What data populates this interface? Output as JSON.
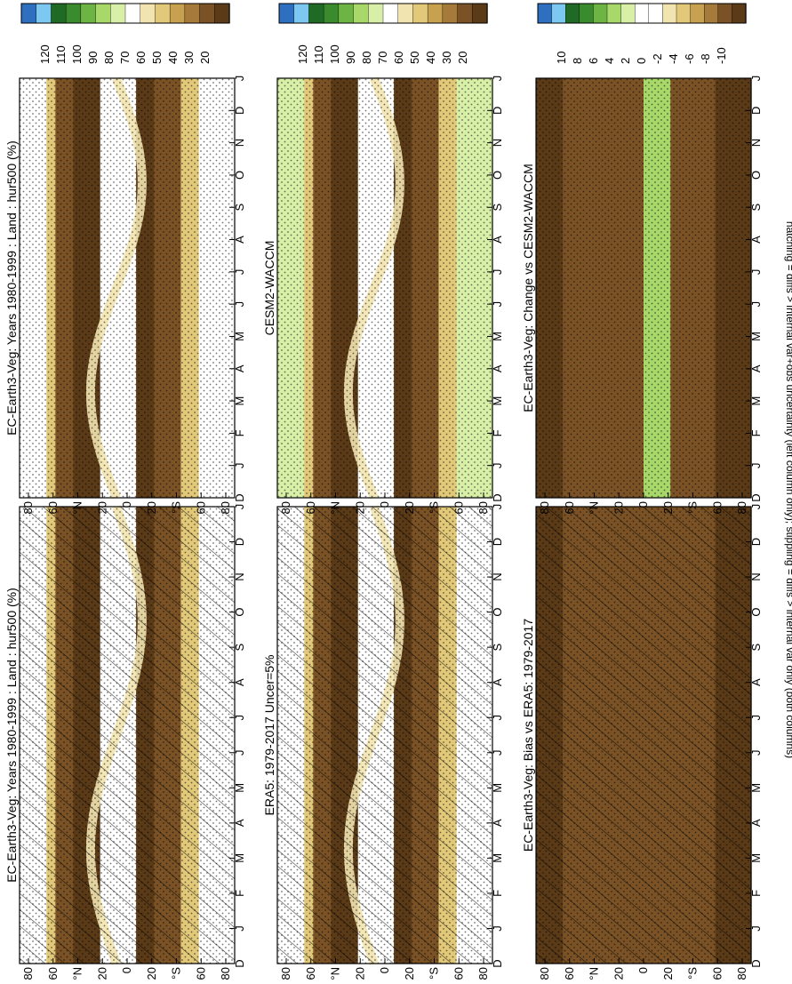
{
  "colors": {
    "brown_dark": "#5a3a17",
    "brown": "#7a5226",
    "tan": "#a57a3a",
    "gold": "#c7a050",
    "khaki": "#e2c97a",
    "pale": "#f2e4b0",
    "white": "#ffffff",
    "light_green": "#d8efa8",
    "green": "#a8d86a",
    "mid_green": "#6cb443",
    "dark_green": "#3a8a2e",
    "deep_green": "#1f6a24",
    "sky": "#7cc8f0",
    "blue": "#2f6fc0"
  },
  "footnote": "hatching = diffs > internal var+obs uncertainty (left column only); stippling = diffs > internal var only (both columns)",
  "months": [
    "D",
    "J",
    "F",
    "M",
    "A",
    "M",
    "J",
    "J",
    "A",
    "S",
    "O",
    "N",
    "D",
    "J"
  ],
  "lat_ticks": [
    "80",
    "60",
    "°N",
    "20",
    "0",
    "20",
    "°S",
    "60",
    "80"
  ],
  "chart_data": [
    {
      "type": "heatmap",
      "title": "EC-Earth3-Veg: Years 1980-1999 : Land : hur500 (%)",
      "xlabel": "",
      "ylabel": "",
      "x_ticks": [
        "D",
        "J",
        "F",
        "M",
        "A",
        "M",
        "J",
        "J",
        "A",
        "S",
        "O",
        "N",
        "D",
        "J"
      ],
      "y_ticks": [
        "80",
        "60",
        "°N",
        "20",
        "0",
        "20",
        "°S",
        "60",
        "80"
      ],
      "colorbar": [
        "120",
        "110",
        "100",
        "90",
        "80",
        "70",
        "60",
        "50",
        "40",
        "30",
        "20"
      ],
      "hatching": true,
      "stippling": true
    },
    {
      "type": "heatmap",
      "title": "EC-Earth3-Veg: Years 1980-1999 : Land : hur500 (%)",
      "xlabel": "",
      "ylabel": "",
      "x_ticks": [
        "D",
        "J",
        "F",
        "M",
        "A",
        "M",
        "J",
        "J",
        "A",
        "S",
        "O",
        "N",
        "D",
        "J"
      ],
      "y_ticks": [
        "80",
        "60",
        "°N",
        "20",
        "0",
        "20",
        "°S",
        "60",
        "80"
      ],
      "colorbar": [
        "120",
        "110",
        "100",
        "90",
        "80",
        "70",
        "60",
        "50",
        "40",
        "30",
        "20"
      ],
      "hatching": false,
      "stippling": true
    },
    {
      "type": "heatmap",
      "title": "ERA5: 1979-2017 Uncer=5%",
      "xlabel": "",
      "ylabel": "",
      "x_ticks": [
        "D",
        "J",
        "F",
        "M",
        "A",
        "M",
        "J",
        "J",
        "A",
        "S",
        "O",
        "N",
        "D",
        "J"
      ],
      "y_ticks": [
        "80",
        "60",
        "°N",
        "20",
        "0",
        "20",
        "°S",
        "60",
        "80"
      ],
      "colorbar": [
        "120",
        "110",
        "100",
        "90",
        "80",
        "70",
        "60",
        "50",
        "40",
        "30",
        "20"
      ],
      "hatching": true,
      "stippling": true
    },
    {
      "type": "heatmap",
      "title": "CESM2-WACCM",
      "xlabel": "",
      "ylabel": "",
      "x_ticks": [
        "D",
        "J",
        "F",
        "M",
        "A",
        "M",
        "J",
        "J",
        "A",
        "S",
        "O",
        "N",
        "D",
        "J"
      ],
      "y_ticks": [
        "80",
        "60",
        "°N",
        "20",
        "0",
        "20",
        "°S",
        "60",
        "80"
      ],
      "colorbar": [
        "120",
        "110",
        "100",
        "90",
        "80",
        "70",
        "60",
        "50",
        "40",
        "30",
        "20"
      ],
      "hatching": false,
      "stippling": true
    },
    {
      "type": "heatmap",
      "title": "EC-Earth3-Veg: Bias vs ERA5: 1979-2017",
      "xlabel": "",
      "ylabel": "",
      "x_ticks": [
        "D",
        "J",
        "F",
        "M",
        "A",
        "M",
        "J",
        "J",
        "A",
        "S",
        "O",
        "N",
        "D",
        "J"
      ],
      "y_ticks": [
        "80",
        "60",
        "°N",
        "20",
        "0",
        "20",
        "°S",
        "60",
        "80"
      ],
      "colorbar": [
        "10",
        "8",
        "6",
        "4",
        "2",
        "0",
        "-2",
        "-4",
        "-6",
        "-8",
        "-10"
      ],
      "hatching": true,
      "stippling": true
    },
    {
      "type": "heatmap",
      "title": "EC-Earth3-Veg: Change vs CESM2-WACCM",
      "xlabel": "",
      "ylabel": "",
      "x_ticks": [
        "D",
        "J",
        "F",
        "M",
        "A",
        "M",
        "J",
        "J",
        "A",
        "S",
        "O",
        "N",
        "D",
        "J"
      ],
      "y_ticks": [
        "80",
        "60",
        "°N",
        "20",
        "0",
        "20",
        "°S",
        "60",
        "80"
      ],
      "colorbar": [
        "10",
        "8",
        "6",
        "4",
        "2",
        "0",
        "-2",
        "-4",
        "-6",
        "-8",
        "-10"
      ],
      "hatching": false,
      "stippling": true
    }
  ]
}
